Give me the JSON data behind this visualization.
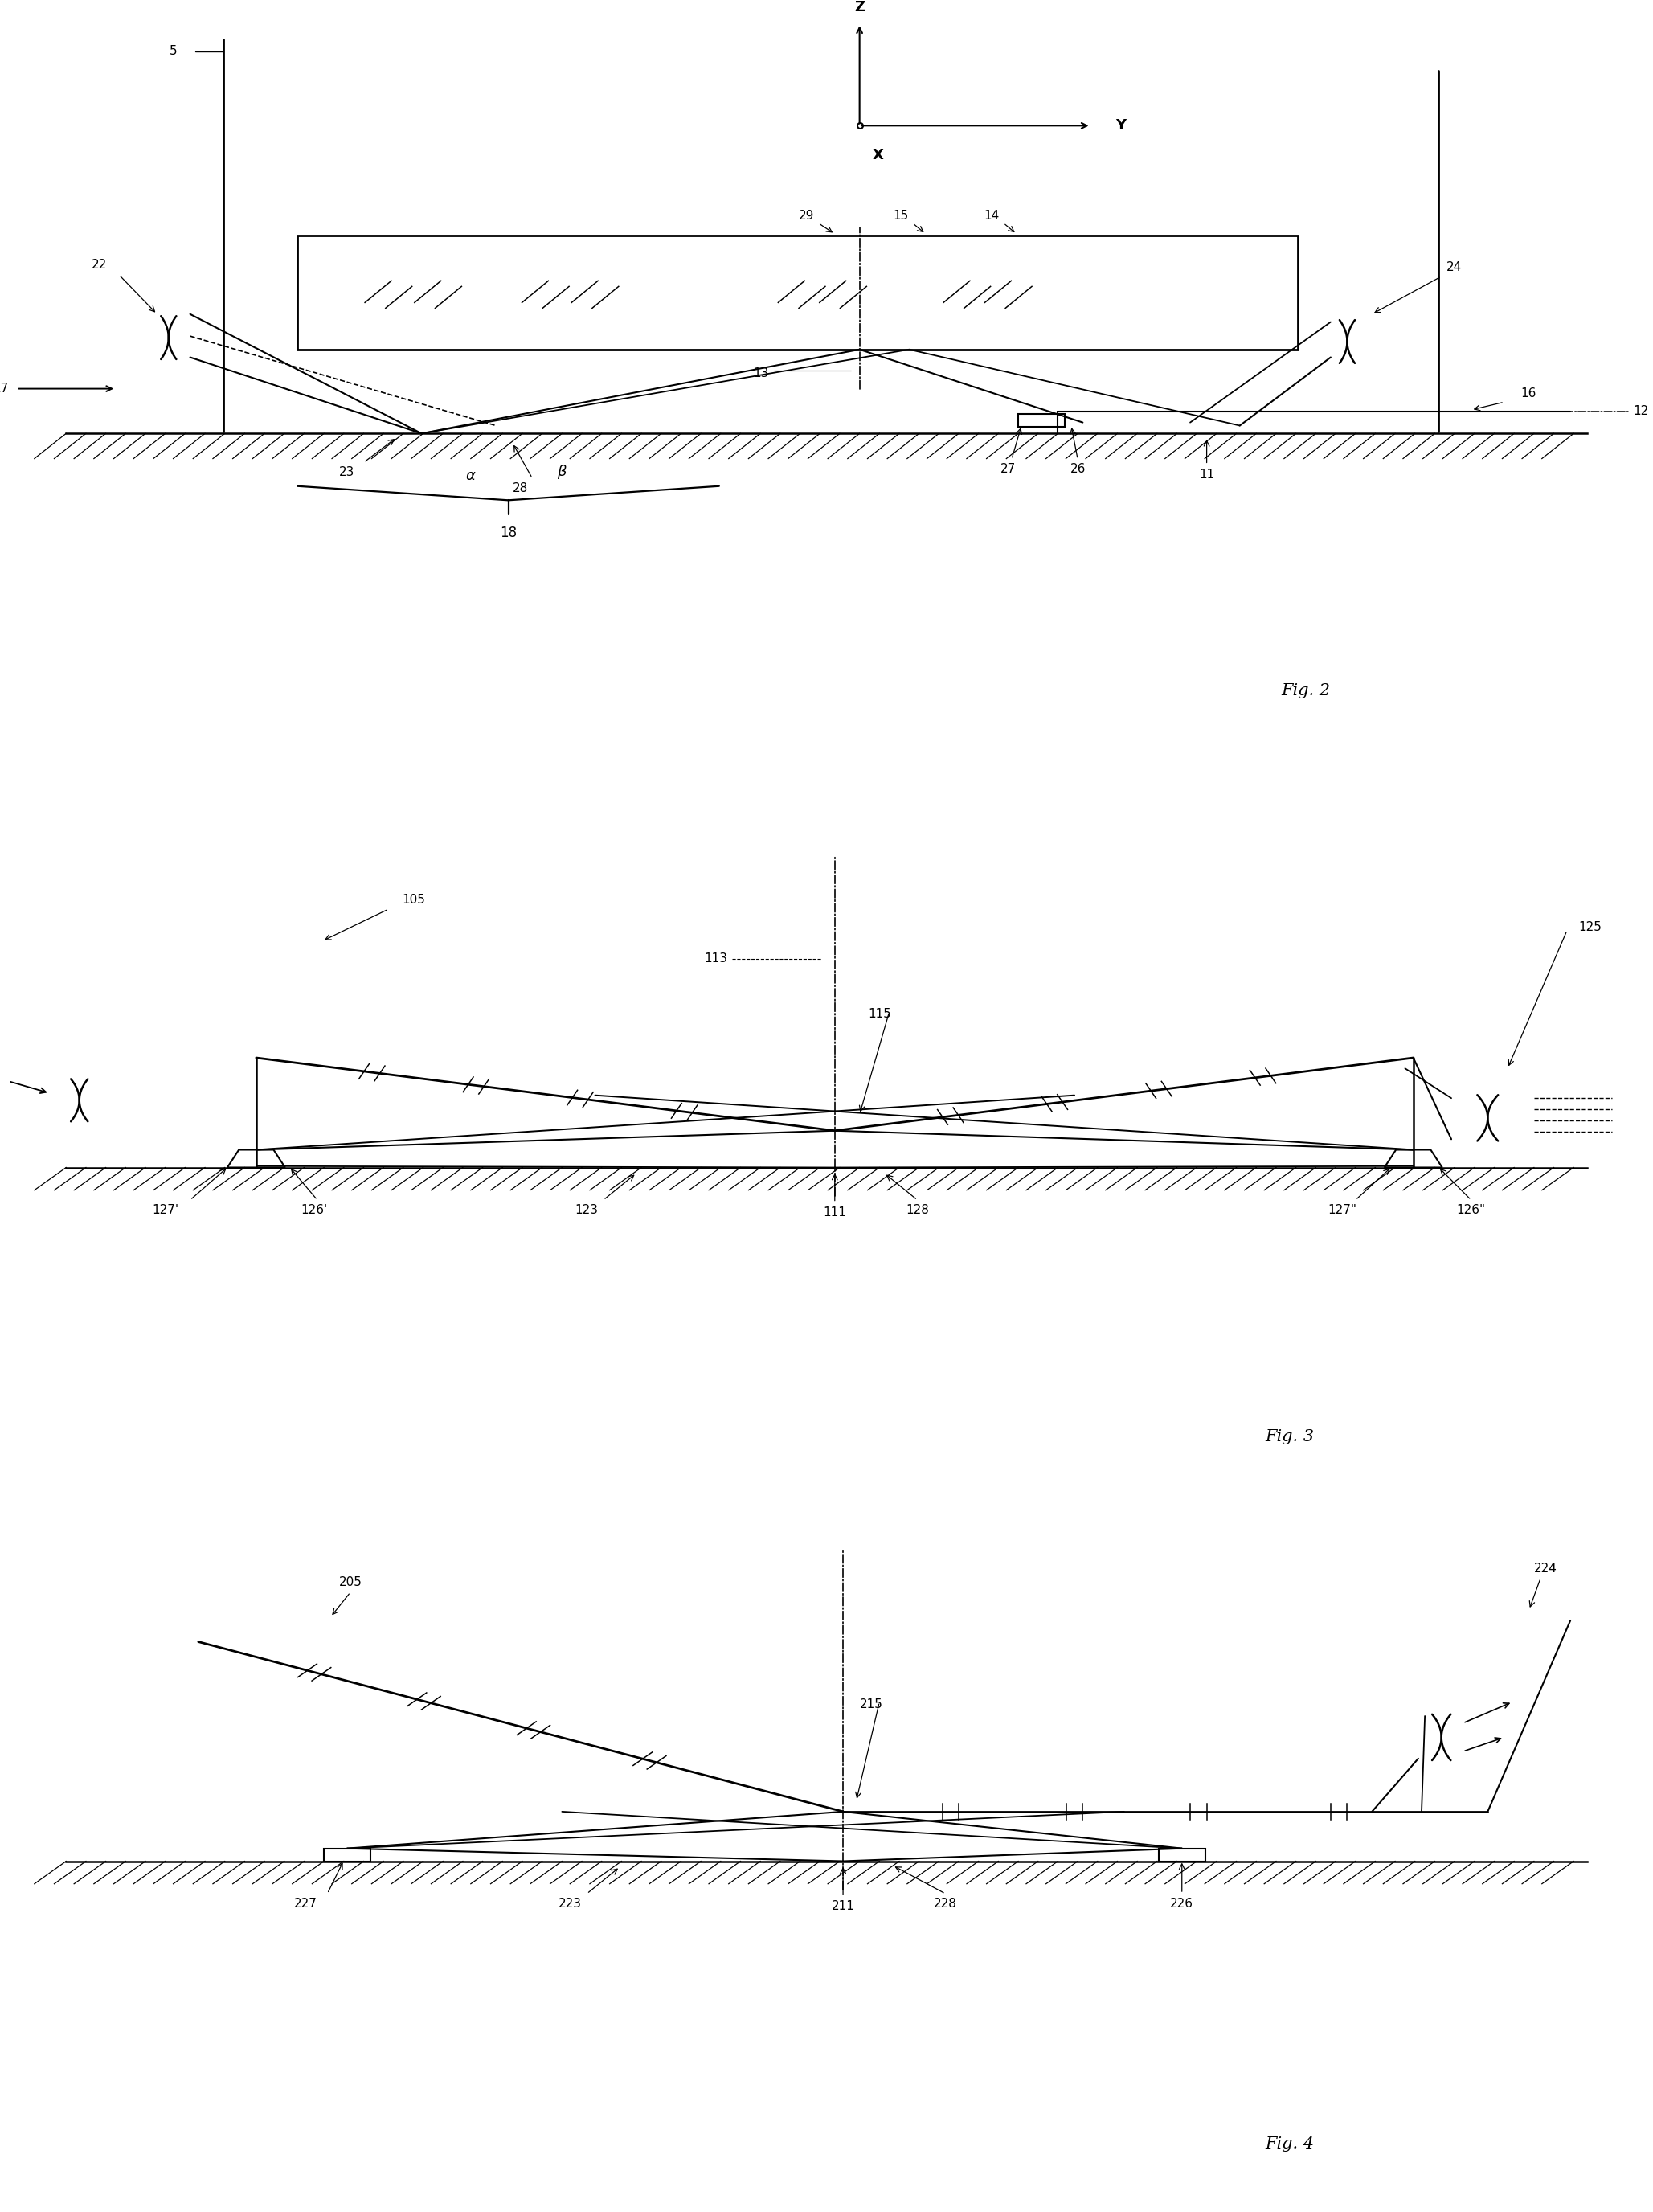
{
  "background_color": "#ffffff",
  "line_color": "#000000",
  "fontsize_label": 11,
  "fontsize_fig": 15,
  "fig2_label": "Fig. 2",
  "fig3_label": "Fig. 3",
  "fig4_label": "Fig. 4"
}
